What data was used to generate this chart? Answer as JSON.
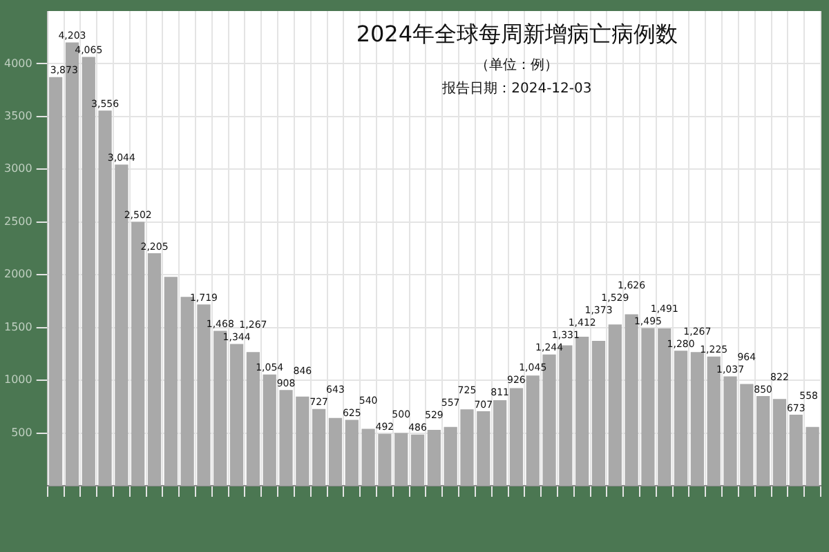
{
  "chart_data": {
    "type": "bar",
    "title": "2024年全球每周新增病亡病例数",
    "subtitle": "（单位：例）",
    "annotations": [
      "报告日期：2024-12-03"
    ],
    "categories": [
      null,
      null,
      null,
      null,
      null,
      null,
      null,
      null,
      null,
      null,
      null,
      null,
      null,
      null,
      null,
      null,
      null,
      null,
      null,
      null,
      null,
      null,
      null,
      null,
      null,
      null,
      null,
      null,
      null,
      null,
      null,
      null,
      null,
      null,
      null,
      null,
      null,
      null,
      null,
      null,
      null,
      null,
      null,
      null,
      null,
      null,
      null
    ],
    "values": [
      3873,
      4203,
      4065,
      3556,
      3044,
      2502,
      2205,
      1980,
      1790,
      1719,
      1468,
      1344,
      1267,
      1054,
      908,
      846,
      727,
      643,
      625,
      540,
      492,
      500,
      486,
      529,
      557,
      725,
      707,
      811,
      926,
      1045,
      1244,
      1331,
      1412,
      1373,
      1529,
      1626,
      1495,
      1491,
      1280,
      1267,
      1225,
      1037,
      964,
      850,
      822,
      673,
      558
    ],
    "value_labels": [
      "3,873",
      "4,203",
      "4,065",
      "3,556",
      "3,044",
      "2,502",
      "2,205",
      null,
      null,
      "1,719",
      "1,468",
      "1,344",
      "1,267",
      "1,054",
      "908",
      "846",
      "727",
      "643",
      "625",
      "540",
      "492",
      "500",
      "486",
      "529",
      "557",
      "725",
      "707",
      "811",
      "926",
      "1,045",
      "1,244",
      "1,331",
      "1,412",
      "1,373",
      "1,529",
      "1,626",
      "1,495",
      "1,491",
      "1,280",
      "1,267",
      "1,225",
      "1,037",
      "964",
      "850",
      "822",
      "673",
      "558"
    ],
    "color": "#a9a9a9",
    "ylim": [
      0,
      4500
    ],
    "yticks": [
      500,
      1000,
      1500,
      2000,
      2500,
      3000,
      3500,
      4000
    ],
    "grid": true,
    "legend": false
  }
}
